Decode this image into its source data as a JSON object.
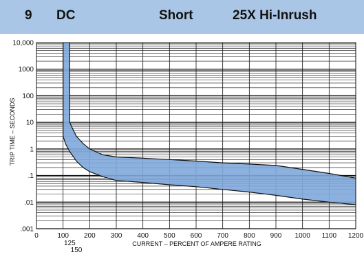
{
  "header": {
    "number": "9",
    "type": "DC",
    "trip": "Short",
    "curve": "25X Hi-Inrush"
  },
  "colors": {
    "header_bg": "#a9c6e6",
    "band_fill": "#7fa9dc",
    "band_stroke": "#111111",
    "grid": "#111111"
  },
  "chart_data": {
    "type": "area",
    "xlabel": "CURRENT – PERCENT OF AMPERE RATING",
    "ylabel": "TRIP TIME – SECONDS",
    "xlim": [
      0,
      1200
    ],
    "ylim": [
      0.001,
      10000
    ],
    "y_scale": "log",
    "grid": true,
    "x_ticks": [
      "0",
      "100",
      "200",
      "300",
      "400",
      "500",
      "600",
      "700",
      "800",
      "900",
      "1000",
      "1100",
      "1200"
    ],
    "x_ticks_extra": [
      "125",
      "150"
    ],
    "y_ticks": [
      ".001",
      ".01",
      ".1",
      "1",
      "10",
      "100",
      "1000",
      "10,000"
    ],
    "series": [
      {
        "values": [
          [
            125,
            10000
          ],
          [
            125,
            10
          ],
          [
            135,
            6
          ],
          [
            150,
            3
          ],
          [
            175,
            1.6
          ],
          [
            200,
            1.0
          ],
          [
            250,
            0.6
          ],
          [
            300,
            0.5
          ],
          [
            400,
            0.45
          ],
          [
            500,
            0.4
          ],
          [
            600,
            0.35
          ],
          [
            700,
            0.3
          ],
          [
            800,
            0.27
          ],
          [
            900,
            0.24
          ],
          [
            1000,
            0.17
          ],
          [
            1100,
            0.12
          ],
          [
            1200,
            0.08
          ]
        ]
      },
      {
        "values": [
          [
            100,
            10000
          ],
          [
            100,
            3
          ],
          [
            110,
            1.5
          ],
          [
            125,
            0.8
          ],
          [
            150,
            0.35
          ],
          [
            175,
            0.2
          ],
          [
            200,
            0.14
          ],
          [
            250,
            0.09
          ],
          [
            300,
            0.065
          ],
          [
            400,
            0.055
          ],
          [
            500,
            0.045
          ],
          [
            600,
            0.038
          ],
          [
            700,
            0.03
          ],
          [
            800,
            0.024
          ],
          [
            900,
            0.018
          ],
          [
            1000,
            0.013
          ],
          [
            1100,
            0.01
          ],
          [
            1200,
            0.008
          ]
        ]
      }
    ]
  }
}
